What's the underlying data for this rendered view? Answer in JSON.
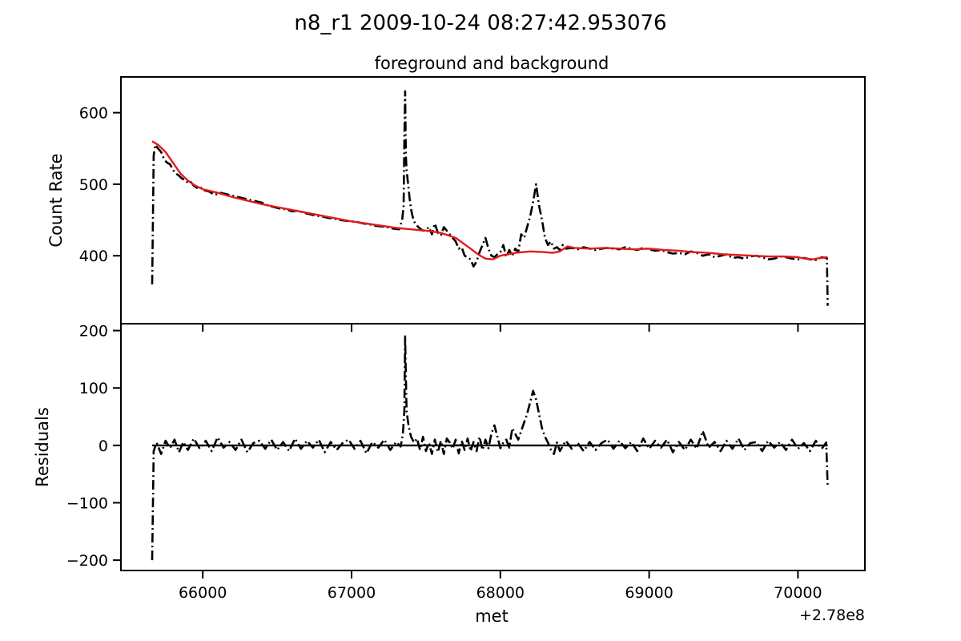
{
  "figure": {
    "suptitle": "n8_r1 2009-10-24 08:27:42.953076"
  },
  "chart_data": [
    {
      "type": "line",
      "title": "foreground and background",
      "xlabel": "",
      "ylabel": "Count Rate",
      "xlim": [
        65450,
        70450
      ],
      "ylim": [
        305,
        650
      ],
      "yticks": [
        400,
        500,
        600
      ],
      "ytick_labels": [
        "400",
        "500",
        "600"
      ],
      "xticks": [
        66000,
        67000,
        68000,
        69000,
        70000
      ],
      "xtick_labels": [
        "",
        "",
        "",
        "",
        ""
      ],
      "grid": false,
      "series": [
        {
          "name": "",
          "style": "dashdot",
          "color": "#000000",
          "x": [
            65660,
            65670,
            65680,
            65700,
            65720,
            65740,
            65760,
            65780,
            65800,
            65820,
            65840,
            65860,
            65880,
            65900,
            65920,
            65940,
            65960,
            65980,
            66000,
            66040,
            66080,
            66120,
            66160,
            66200,
            66240,
            66280,
            66320,
            66360,
            66400,
            66440,
            66480,
            66520,
            66560,
            66600,
            66640,
            66680,
            66720,
            66760,
            66800,
            66840,
            66880,
            66920,
            66960,
            67000,
            67040,
            67080,
            67120,
            67160,
            67200,
            67240,
            67280,
            67320,
            67340,
            67350,
            67355,
            67360,
            67365,
            67370,
            67380,
            67390,
            67400,
            67410,
            67420,
            67440,
            67460,
            67480,
            67500,
            67520,
            67540,
            67560,
            67580,
            67600,
            67620,
            67640,
            67660,
            67680,
            67700,
            67720,
            67740,
            67760,
            67780,
            67800,
            67820,
            67840,
            67860,
            67880,
            67900,
            67920,
            67940,
            67960,
            67980,
            68000,
            68020,
            68040,
            68060,
            68080,
            68100,
            68120,
            68140,
            68160,
            68180,
            68200,
            68220,
            68240,
            68260,
            68280,
            68300,
            68320,
            68340,
            68360,
            68380,
            68400,
            68420,
            68440,
            68480,
            68520,
            68560,
            68600,
            68640,
            68680,
            68720,
            68760,
            68800,
            68840,
            68880,
            68920,
            68960,
            69000,
            69040,
            69080,
            69120,
            69160,
            69200,
            69240,
            69280,
            69320,
            69360,
            69400,
            69440,
            69480,
            69520,
            69560,
            69600,
            69640,
            69680,
            69720,
            69760,
            69800,
            69840,
            69880,
            69920,
            69960,
            70000,
            70040,
            70080,
            70120,
            70160,
            70195,
            70200
          ],
          "y": [
            360,
            540,
            555,
            550,
            545,
            535,
            530,
            528,
            520,
            515,
            512,
            508,
            506,
            502,
            503,
            498,
            495,
            497,
            492,
            490,
            485,
            488,
            486,
            484,
            482,
            480,
            478,
            476,
            474,
            470,
            468,
            466,
            465,
            462,
            463,
            460,
            458,
            456,
            455,
            453,
            452,
            450,
            449,
            448,
            447,
            445,
            444,
            442,
            441,
            440,
            438,
            437,
            450,
            470,
            560,
            630,
            540,
            520,
            500,
            480,
            465,
            455,
            448,
            442,
            438,
            435,
            436,
            440,
            430,
            445,
            432,
            428,
            440,
            435,
            430,
            425,
            420,
            410,
            412,
            400,
            398,
            395,
            385,
            392,
            405,
            415,
            425,
            410,
            400,
            398,
            402,
            405,
            415,
            398,
            408,
            400,
            410,
            405,
            430,
            425,
            440,
            455,
            475,
            500,
            470,
            450,
            425,
            415,
            420,
            410,
            412,
            408,
            415,
            410,
            411,
            409,
            412,
            410,
            408,
            410,
            411,
            410,
            409,
            412,
            410,
            408,
            411,
            409,
            407,
            408,
            405,
            403,
            404,
            402,
            406,
            404,
            400,
            402,
            398,
            400,
            402,
            397,
            398,
            396,
            399,
            400,
            398,
            395,
            396,
            399,
            398,
            396,
            395,
            397,
            395,
            394,
            398,
            397,
            330
          ]
        },
        {
          "name": "",
          "style": "solid",
          "color": "#e31a1c",
          "x": [
            65660,
            65700,
            65750,
            65800,
            65850,
            65900,
            65950,
            66000,
            66100,
            66200,
            66300,
            66400,
            66500,
            66600,
            66700,
            66800,
            66900,
            67000,
            67100,
            67200,
            67300,
            67400,
            67500,
            67600,
            67700,
            67800,
            67850,
            67900,
            67950,
            68000,
            68100,
            68200,
            68300,
            68350,
            68400,
            68450,
            68500,
            68600,
            68700,
            68800,
            68900,
            69000,
            69100,
            69200,
            69300,
            69400,
            69500,
            69600,
            69700,
            69800,
            69900,
            70000,
            70050,
            70100,
            70150,
            70200
          ],
          "y": [
            560,
            555,
            545,
            530,
            515,
            505,
            498,
            493,
            488,
            482,
            477,
            472,
            468,
            464,
            460,
            456,
            452,
            448,
            445,
            442,
            439,
            437,
            435,
            432,
            425,
            410,
            402,
            396,
            395,
            400,
            404,
            406,
            405,
            404,
            406,
            413,
            411,
            410,
            411,
            410,
            409,
            410,
            408,
            407,
            405,
            404,
            402,
            401,
            400,
            399,
            399,
            398,
            396,
            395,
            397,
            398
          ]
        }
      ]
    },
    {
      "type": "line",
      "title": "",
      "xlabel": "met",
      "ylabel": "Residuals",
      "x_offset_label": "+2.78e8",
      "xlim": [
        65450,
        70450
      ],
      "ylim": [
        -218,
        212
      ],
      "yticks": [
        -200,
        -100,
        0,
        100,
        200
      ],
      "ytick_labels": [
        "−200",
        "−100",
        "0",
        "100",
        "200"
      ],
      "xticks": [
        66000,
        67000,
        68000,
        69000,
        70000
      ],
      "xtick_labels": [
        "66000",
        "67000",
        "68000",
        "69000",
        "70000"
      ],
      "grid": false,
      "series": [
        {
          "name": "",
          "style": "dashdot",
          "color": "#000000",
          "x": [
            65660,
            65670,
            65690,
            65720,
            65750,
            65780,
            65810,
            65840,
            65870,
            65900,
            65940,
            65980,
            66020,
            66060,
            66100,
            66140,
            66180,
            66220,
            66260,
            66300,
            66340,
            66380,
            66420,
            66460,
            66500,
            66540,
            66580,
            66620,
            66660,
            66700,
            66740,
            66780,
            66820,
            66860,
            66900,
            66940,
            66980,
            67020,
            67060,
            67100,
            67140,
            67180,
            67220,
            67260,
            67300,
            67330,
            67345,
            67355,
            67360,
            67365,
            67370,
            67380,
            67390,
            67400,
            67410,
            67420,
            67440,
            67460,
            67480,
            67500,
            67520,
            67540,
            67560,
            67580,
            67600,
            67620,
            67640,
            67660,
            67680,
            67700,
            67720,
            67740,
            67760,
            67780,
            67800,
            67820,
            67840,
            67860,
            67880,
            67900,
            67920,
            67940,
            67960,
            67980,
            68000,
            68020,
            68040,
            68060,
            68080,
            68100,
            68120,
            68140,
            68160,
            68180,
            68200,
            68220,
            68240,
            68260,
            68280,
            68300,
            68320,
            68340,
            68360,
            68380,
            68400,
            68440,
            68480,
            68520,
            68560,
            68600,
            68640,
            68680,
            68720,
            68760,
            68800,
            68840,
            68880,
            68920,
            68960,
            69000,
            69040,
            69080,
            69120,
            69160,
            69200,
            69240,
            69280,
            69320,
            69360,
            69400,
            69440,
            69480,
            69520,
            69560,
            69600,
            69640,
            69680,
            69720,
            69760,
            69800,
            69840,
            69880,
            69920,
            69960,
            70000,
            70040,
            70080,
            70120,
            70160,
            70190,
            70200
          ],
          "y": [
            -200,
            -10,
            5,
            -15,
            8,
            -5,
            10,
            -12,
            6,
            -8,
            12,
            -6,
            8,
            -10,
            14,
            -4,
            6,
            -8,
            10,
            -12,
            4,
            8,
            -6,
            10,
            -8,
            6,
            -10,
            12,
            -6,
            8,
            -4,
            10,
            -12,
            6,
            -8,
            4,
            10,
            -6,
            8,
            -14,
            6,
            -4,
            10,
            -8,
            6,
            -2,
            20,
            60,
            190,
            120,
            60,
            40,
            25,
            15,
            10,
            5,
            12,
            -8,
            15,
            -10,
            5,
            -15,
            10,
            -12,
            8,
            -15,
            12,
            5,
            -6,
            10,
            -14,
            8,
            -8,
            12,
            -10,
            6,
            -10,
            15,
            -8,
            10,
            -5,
            20,
            35,
            15,
            -5,
            5,
            10,
            -4,
            30,
            20,
            10,
            25,
            40,
            55,
            75,
            95,
            80,
            55,
            30,
            15,
            5,
            -8,
            -15,
            5,
            -10,
            8,
            -6,
            4,
            -10,
            6,
            -8,
            4,
            10,
            -6,
            8,
            -5,
            6,
            -10,
            12,
            -6,
            8,
            -4,
            10,
            -12,
            6,
            -8,
            10,
            -6,
            25,
            -4,
            6,
            -10,
            8,
            -6,
            12,
            -8,
            4,
            6,
            -10,
            8,
            -4,
            6,
            -8,
            10,
            -6,
            4,
            -10,
            8,
            -6,
            5,
            -70
          ]
        },
        {
          "name": "",
          "style": "solid",
          "color": "#000000",
          "x": [
            65660,
            70200
          ],
          "y": [
            0,
            0
          ]
        }
      ]
    }
  ]
}
